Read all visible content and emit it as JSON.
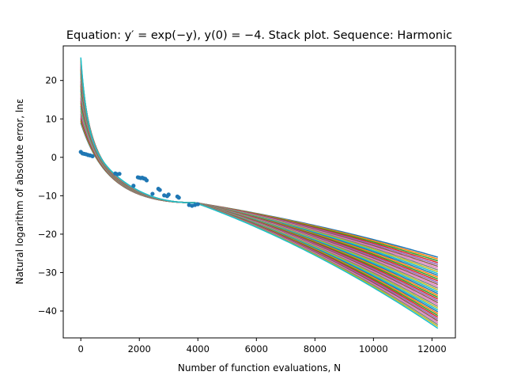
{
  "chart_data": {
    "type": "line",
    "title": "Equation: y′ = exp(−y), y(0) = −4. Stack plot. Sequence: Harmonic",
    "xlabel": "Number of function evaluations, N",
    "ylabel": "Natural logarithm of absolute error, lnε",
    "xlim": [
      -600,
      12800
    ],
    "ylim": [
      -47,
      29
    ],
    "x_ticks": [
      0,
      2000,
      4000,
      6000,
      8000,
      10000,
      12000
    ],
    "y_ticks": [
      20,
      10,
      0,
      -10,
      -20,
      -30,
      -40
    ],
    "grid": false,
    "legend": "none",
    "series_colors": [
      "#1f77b4",
      "#ff7f0e",
      "#2ca02c",
      "#d62728",
      "#9467bd",
      "#8c564b",
      "#e377c2",
      "#7f7f7f",
      "#bcbd22",
      "#17becf"
    ],
    "lines": {
      "count": 40,
      "x_range": [
        0,
        12200
      ],
      "start_y_range": [
        9,
        26
      ],
      "end_y_range": [
        -26,
        -44.5
      ],
      "crossover": {
        "x": 3900,
        "y": -11.8
      }
    },
    "scatter": {
      "color": "#1f77b4",
      "points": [
        [
          0,
          1.4
        ],
        [
          60,
          1.0
        ],
        [
          120,
          0.9
        ],
        [
          180,
          0.8
        ],
        [
          250,
          0.6
        ],
        [
          320,
          0.5
        ],
        [
          400,
          0.3
        ],
        [
          1180,
          -4.2
        ],
        [
          1250,
          -4.4
        ],
        [
          1320,
          -4.3
        ],
        [
          1800,
          -7.4
        ],
        [
          1950,
          -5.2
        ],
        [
          2000,
          -5.3
        ],
        [
          2050,
          -5.4
        ],
        [
          2100,
          -5.3
        ],
        [
          2150,
          -5.5
        ],
        [
          2200,
          -5.6
        ],
        [
          2250,
          -6.0
        ],
        [
          2450,
          -9.5
        ],
        [
          2650,
          -8.2
        ],
        [
          2700,
          -8.5
        ],
        [
          2850,
          -9.9
        ],
        [
          2950,
          -10.1
        ],
        [
          3000,
          -9.7
        ],
        [
          3300,
          -10.2
        ],
        [
          3350,
          -10.5
        ],
        [
          3700,
          -12.4
        ],
        [
          3800,
          -12.6
        ],
        [
          3900,
          -12.4
        ],
        [
          4000,
          -12.2
        ]
      ]
    }
  }
}
